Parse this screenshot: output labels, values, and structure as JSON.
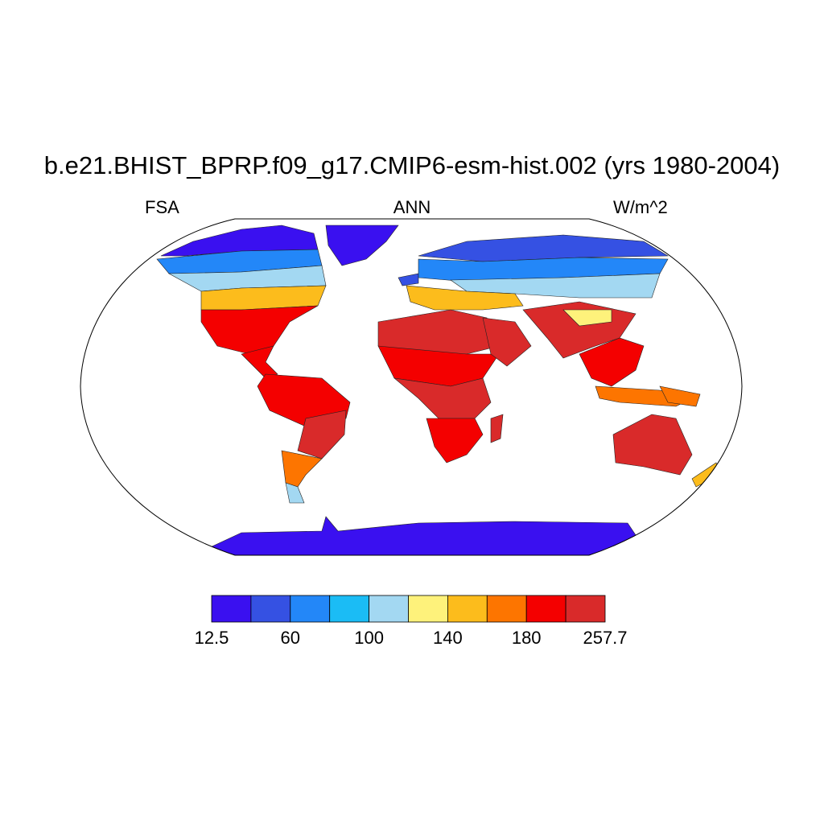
{
  "title": "b.e21.BHIST_BPRP.f09_g17.CMIP6-esm-hist.002 (yrs 1980-2004)",
  "subtitles": {
    "left": "FSA",
    "center": "ANN",
    "right": "W/m^2"
  },
  "map": {
    "projection": "robinson",
    "variable": "FSA",
    "season": "ANN",
    "units": "W/m^2",
    "regions": [
      {
        "name": "antarctica",
        "level": 0
      },
      {
        "name": "greenland",
        "level": 0
      },
      {
        "name": "arctic-canada",
        "level": 0
      },
      {
        "name": "northern-canada",
        "level": 2
      },
      {
        "name": "southern-canada",
        "level": 4
      },
      {
        "name": "northern-usa",
        "level": 6
      },
      {
        "name": "southern-usa-mexico",
        "level": 8
      },
      {
        "name": "central-america",
        "level": 8
      },
      {
        "name": "amazon",
        "level": 8
      },
      {
        "name": "brazil-highlands",
        "level": 9
      },
      {
        "name": "argentina",
        "level": 7
      },
      {
        "name": "patagonia",
        "level": 4
      },
      {
        "name": "iceland",
        "level": 1
      },
      {
        "name": "northern-siberia",
        "level": 1
      },
      {
        "name": "scandinavia-russia",
        "level": 2
      },
      {
        "name": "central-asia",
        "level": 4
      },
      {
        "name": "europe",
        "level": 6
      },
      {
        "name": "south-asia",
        "level": 9
      },
      {
        "name": "tibet",
        "level": 5
      },
      {
        "name": "sahara",
        "level": 9
      },
      {
        "name": "sahel",
        "level": 8
      },
      {
        "name": "central-africa",
        "level": 9
      },
      {
        "name": "southern-africa",
        "level": 8
      },
      {
        "name": "madagascar",
        "level": 9
      },
      {
        "name": "arabia",
        "level": 9
      },
      {
        "name": "southeast-asia",
        "level": 8
      },
      {
        "name": "indonesia",
        "level": 7
      },
      {
        "name": "new-guinea",
        "level": 7
      },
      {
        "name": "australia",
        "level": 9
      },
      {
        "name": "new-zealand",
        "level": 6
      }
    ]
  },
  "colorbar": {
    "colors": [
      "#3a10f0",
      "#3551e3",
      "#2387f8",
      "#1bbcf5",
      "#a3d8f2",
      "#fef27b",
      "#fcbc1c",
      "#fd7500",
      "#f40000",
      "#d92a2a"
    ],
    "labels": [
      "12.5",
      "60",
      "100",
      "140",
      "180",
      "257.7"
    ]
  }
}
